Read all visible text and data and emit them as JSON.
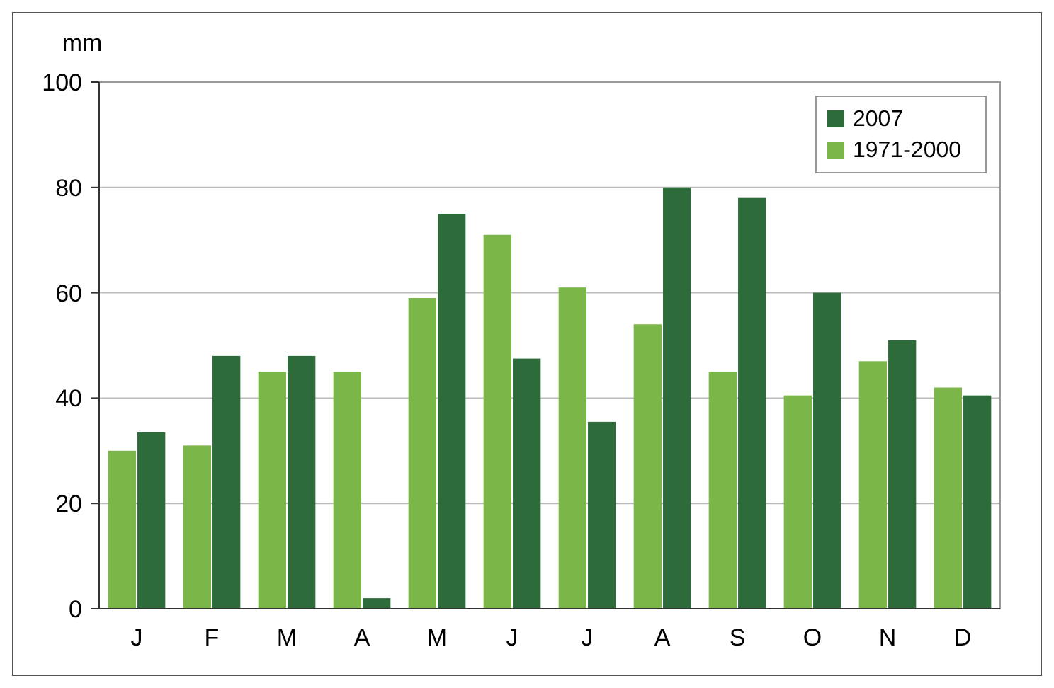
{
  "chart_data": {
    "type": "bar",
    "ylabel": "mm",
    "categories": [
      "J",
      "F",
      "M",
      "A",
      "M",
      "J",
      "J",
      "A",
      "S",
      "O",
      "N",
      "D"
    ],
    "series": [
      {
        "name": "1971-2000",
        "color": "#7ab648",
        "values": [
          30,
          31,
          45,
          45,
          59,
          71,
          61,
          54,
          45,
          40.5,
          47,
          42
        ]
      },
      {
        "name": "2007",
        "color": "#2e6b3a",
        "values": [
          33.5,
          48,
          48,
          2,
          75,
          47.5,
          35.5,
          80,
          78,
          60,
          51,
          40.5
        ]
      }
    ],
    "ylim": [
      0,
      100
    ],
    "yticks": [
      0,
      20,
      40,
      60,
      80,
      100
    ],
    "grid": "y",
    "legend": "top right"
  }
}
